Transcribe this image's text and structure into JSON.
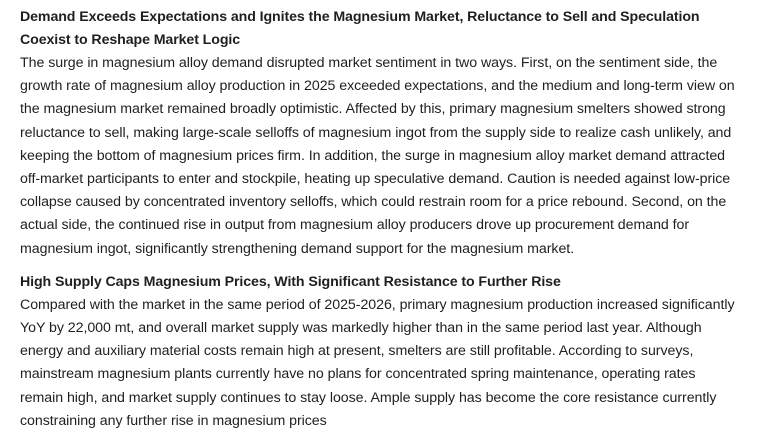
{
  "sections": [
    {
      "heading": "Demand Exceeds Expectations and Ignites the Magnesium Market, Reluctance to Sell and Speculation Coexist to Reshape Market Logic",
      "body": "The surge in magnesium alloy demand disrupted market sentiment in two ways. First, on the sentiment side, the growth rate of magnesium alloy production in 2025 exceeded expectations, and the medium and long-term view on the magnesium market remained broadly optimistic. Affected by this, primary magnesium smelters showed strong reluctance to sell, making large-scale selloffs of magnesium ingot from the supply side to realize cash unlikely, and keeping the bottom of magnesium prices firm. In addition, the surge in magnesium alloy market demand attracted off-market participants to enter and stockpile, heating up speculative demand. Caution is needed against low-price collapse caused by concentrated inventory selloffs, which could restrain room for a price rebound. Second, on the actual side, the continued rise in output from magnesium alloy producers drove up procurement demand for magnesium ingot, significantly strengthening demand support for the magnesium market."
    },
    {
      "heading": "High Supply Caps Magnesium Prices, With Significant Resistance to Further Rise",
      "body": "Compared with the market in the same period of 2025-2026, primary magnesium production increased significantly YoY by 22,000 mt, and overall market supply was markedly higher than in the same period last year. Although energy and auxiliary material costs remain high at present, smelters are still profitable. According to surveys, mainstream magnesium plants currently have no plans for concentrated spring maintenance, operating rates remain high, and market supply continues to stay loose. Ample supply has become the core resistance currently constraining any further rise in magnesium prices"
    }
  ]
}
